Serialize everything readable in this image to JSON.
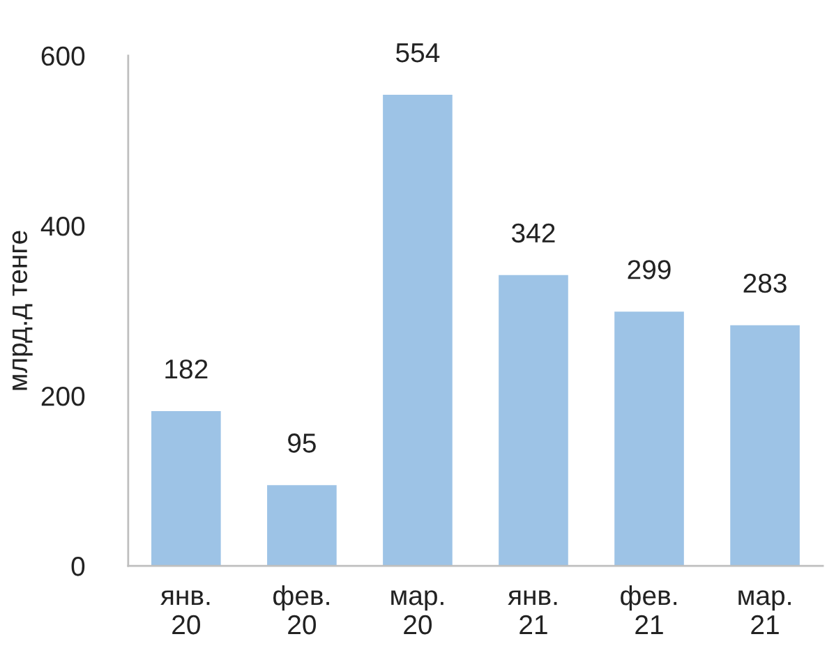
{
  "chart_data": {
    "type": "bar",
    "categories": [
      "янв.\n20",
      "фев.\n20",
      "мар.\n20",
      "янв.\n21",
      "фев.\n21",
      "мар.\n21"
    ],
    "values": [
      182,
      95,
      554,
      342,
      299,
      283
    ],
    "color": "#9dc3e6",
    "ylabel": "млрд.д тенге",
    "ylim": [
      0,
      600
    ],
    "yticks": [
      0,
      200,
      400,
      600
    ],
    "data_labels": true,
    "grid": false,
    "legend": false
  }
}
